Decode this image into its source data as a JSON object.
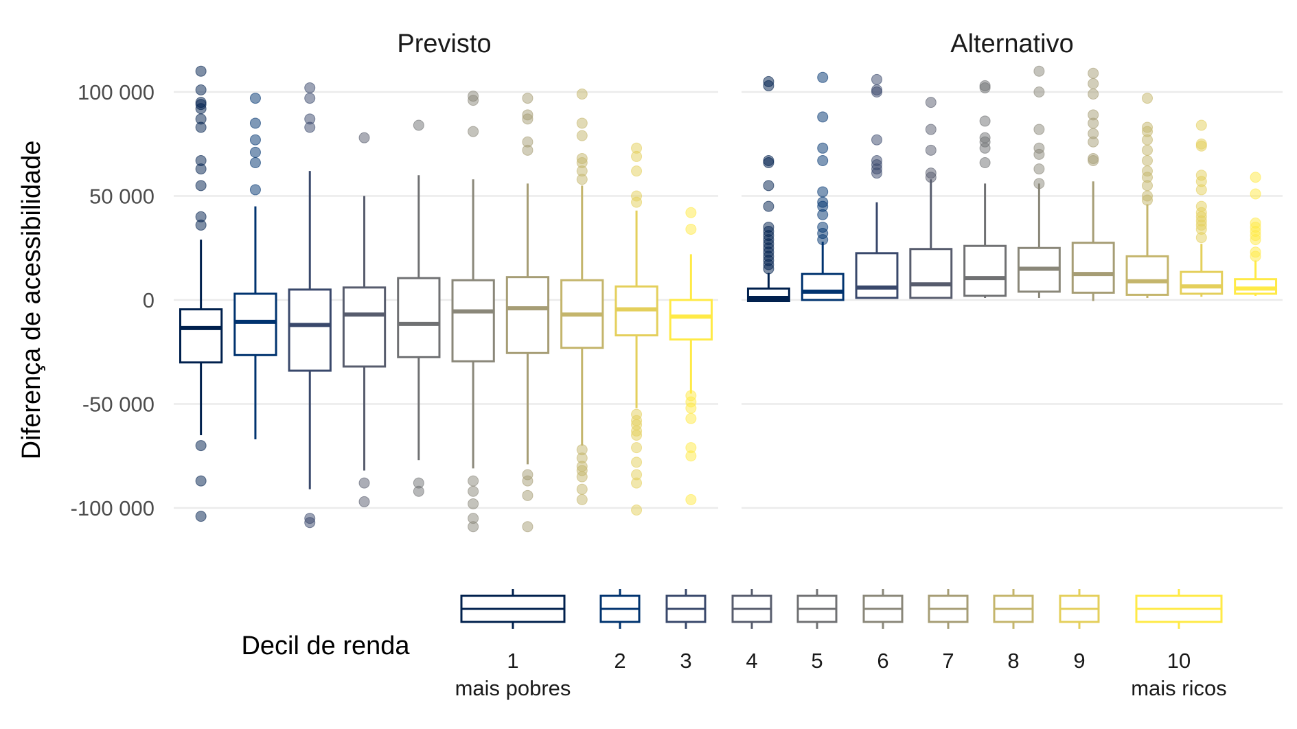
{
  "chart_data": {
    "type": "boxplot",
    "facets": [
      "Previsto",
      "Alternativo"
    ],
    "ylabel": "Diferença de acessibilidade",
    "ylim": [
      -110000,
      110000
    ],
    "y_ticks": [
      100000,
      50000,
      0,
      -50000,
      -100000
    ],
    "y_tick_labels": [
      "100 000",
      "50 000",
      "0",
      "-50 000",
      "-100 000"
    ],
    "grid": "horizontal",
    "legend": {
      "title": "Decil de renda",
      "position": "bottom",
      "labels": [
        "1",
        "2",
        "3",
        "4",
        "5",
        "6",
        "7",
        "8",
        "9",
        "10"
      ],
      "sublabels": {
        "first": "mais pobres",
        "last": "mais ricos"
      }
    },
    "colors": [
      "#00204d",
      "#00336f",
      "#39486b",
      "#575c6d",
      "#707173",
      "#8a8779",
      "#a69d75",
      "#c4b56c",
      "#e4cf5b",
      "#ffea46"
    ],
    "series": [
      {
        "facet": "Previsto",
        "boxes": [
          {
            "decile": 1,
            "whisker_low": -65000,
            "q1": -30000,
            "median": -13500,
            "q3": -4500,
            "whisker_high": 29000,
            "outliers": [
              110000,
              101000,
              95000,
              94000,
              92000,
              87000,
              83000,
              67000,
              63000,
              55000,
              40000,
              36000,
              -70000,
              -87000,
              -104000
            ]
          },
          {
            "decile": 2,
            "whisker_low": -67000,
            "q1": -26500,
            "median": -10500,
            "q3": 3000,
            "whisker_high": 45000,
            "outliers": [
              97000,
              85000,
              77000,
              71000,
              66000,
              53000
            ]
          },
          {
            "decile": 3,
            "whisker_low": -91000,
            "q1": -34000,
            "median": -12000,
            "q3": 5000,
            "whisker_high": 62000,
            "outliers": [
              102000,
              97000,
              87000,
              83000,
              -105000,
              -107000
            ]
          },
          {
            "decile": 4,
            "whisker_low": -82000,
            "q1": -32000,
            "median": -7000,
            "q3": 6000,
            "whisker_high": 50000,
            "outliers": [
              78000,
              -88000,
              -97000
            ]
          },
          {
            "decile": 5,
            "whisker_low": -77000,
            "q1": -27500,
            "median": -11500,
            "q3": 10500,
            "whisker_high": 60000,
            "outliers": [
              84000,
              -88000,
              -92000
            ]
          },
          {
            "decile": 6,
            "whisker_low": -81000,
            "q1": -29500,
            "median": -5500,
            "q3": 9500,
            "whisker_high": 58000,
            "outliers": [
              98000,
              96000,
              81000,
              -87000,
              -92000,
              -98000,
              -105000,
              -109000
            ]
          },
          {
            "decile": 7,
            "whisker_low": -79000,
            "q1": -25500,
            "median": -4000,
            "q3": 11000,
            "whisker_high": 56000,
            "outliers": [
              97000,
              89000,
              87000,
              76000,
              72000,
              -84000,
              -87000,
              -94000,
              -109000
            ]
          },
          {
            "decile": 8,
            "whisker_low": -70000,
            "q1": -23000,
            "median": -7000,
            "q3": 9500,
            "whisker_high": 55000,
            "outliers": [
              99000,
              85000,
              79000,
              68000,
              66000,
              62000,
              58000,
              -72000,
              -76000,
              -80000,
              -82000,
              -85000,
              -91000,
              -96000
            ]
          },
          {
            "decile": 9,
            "whisker_low": -52000,
            "q1": -17000,
            "median": -4500,
            "q3": 6500,
            "whisker_high": 43000,
            "outliers": [
              73000,
              69000,
              62000,
              50000,
              47000,
              -55000,
              -58000,
              -60000,
              -63000,
              -65000,
              -71000,
              -78000,
              -84000,
              -88000,
              -101000
            ]
          },
          {
            "decile": 10,
            "whisker_low": -45000,
            "q1": -19000,
            "median": -8000,
            "q3": 0,
            "whisker_high": 22000,
            "outliers": [
              42000,
              34000,
              -46000,
              -49000,
              -52000,
              -57000,
              -71000,
              -75000,
              -96000
            ]
          }
        ]
      },
      {
        "facet": "Alternativo",
        "boxes": [
          {
            "decile": 1,
            "whisker_low": -500,
            "q1": -500,
            "median": 1000,
            "q3": 5500,
            "whisker_high": 13000,
            "outliers": [
              105000,
              103000,
              67000,
              66000,
              55000,
              45000,
              35000,
              33000,
              31000,
              29000,
              27000,
              25000,
              23000,
              21000,
              19000,
              17000,
              15000
            ]
          },
          {
            "decile": 2,
            "whisker_low": 0,
            "q1": 0,
            "median": 4000,
            "q3": 12500,
            "whisker_high": 28000,
            "outliers": [
              107000,
              88000,
              73000,
              67000,
              52000,
              47000,
              45000,
              41000,
              35000,
              32000,
              29000
            ]
          },
          {
            "decile": 3,
            "whisker_low": 500,
            "q1": 1000,
            "median": 6000,
            "q3": 22500,
            "whisker_high": 47000,
            "outliers": [
              106000,
              101000,
              100000,
              77000,
              67000,
              65000,
              63000,
              61000
            ]
          },
          {
            "decile": 4,
            "whisker_low": 500,
            "q1": 1000,
            "median": 7500,
            "q3": 24500,
            "whisker_high": 58000,
            "outliers": [
              95000,
              82000,
              72000,
              61000,
              59000
            ]
          },
          {
            "decile": 5,
            "whisker_low": 1000,
            "q1": 2000,
            "median": 10500,
            "q3": 26000,
            "whisker_high": 56000,
            "outliers": [
              103000,
              102000,
              86000,
              78000,
              76000,
              73000,
              66000
            ]
          },
          {
            "decile": 6,
            "whisker_low": 1000,
            "q1": 4000,
            "median": 15000,
            "q3": 25000,
            "whisker_high": 56000,
            "outliers": [
              110000,
              100000,
              82000,
              73000,
              70000,
              63000,
              56000
            ]
          },
          {
            "decile": 7,
            "whisker_low": -500,
            "q1": 3500,
            "median": 12500,
            "q3": 27500,
            "whisker_high": 57000,
            "outliers": [
              109000,
              104000,
              99000,
              89000,
              85000,
              80000,
              76000,
              68000,
              67000
            ]
          },
          {
            "decile": 8,
            "whisker_low": 1000,
            "q1": 2500,
            "median": 9000,
            "q3": 21000,
            "whisker_high": 46000,
            "outliers": [
              97000,
              83000,
              81000,
              77000,
              72000,
              67000,
              62000,
              59000,
              55000,
              50000,
              48000
            ]
          },
          {
            "decile": 9,
            "whisker_low": 1500,
            "q1": 3000,
            "median": 6500,
            "q3": 13500,
            "whisker_high": 27000,
            "outliers": [
              84000,
              75000,
              74000,
              60000,
              57000,
              53000,
              45000,
              42000,
              40000,
              38000,
              36000,
              34000,
              30000
            ]
          },
          {
            "decile": 10,
            "whisker_low": 2000,
            "q1": 3000,
            "median": 5500,
            "q3": 10000,
            "whisker_high": 19000,
            "outliers": [
              59000,
              51000,
              37000,
              35000,
              33000,
              31000,
              29000,
              23000,
              21000
            ]
          }
        ]
      }
    ]
  }
}
